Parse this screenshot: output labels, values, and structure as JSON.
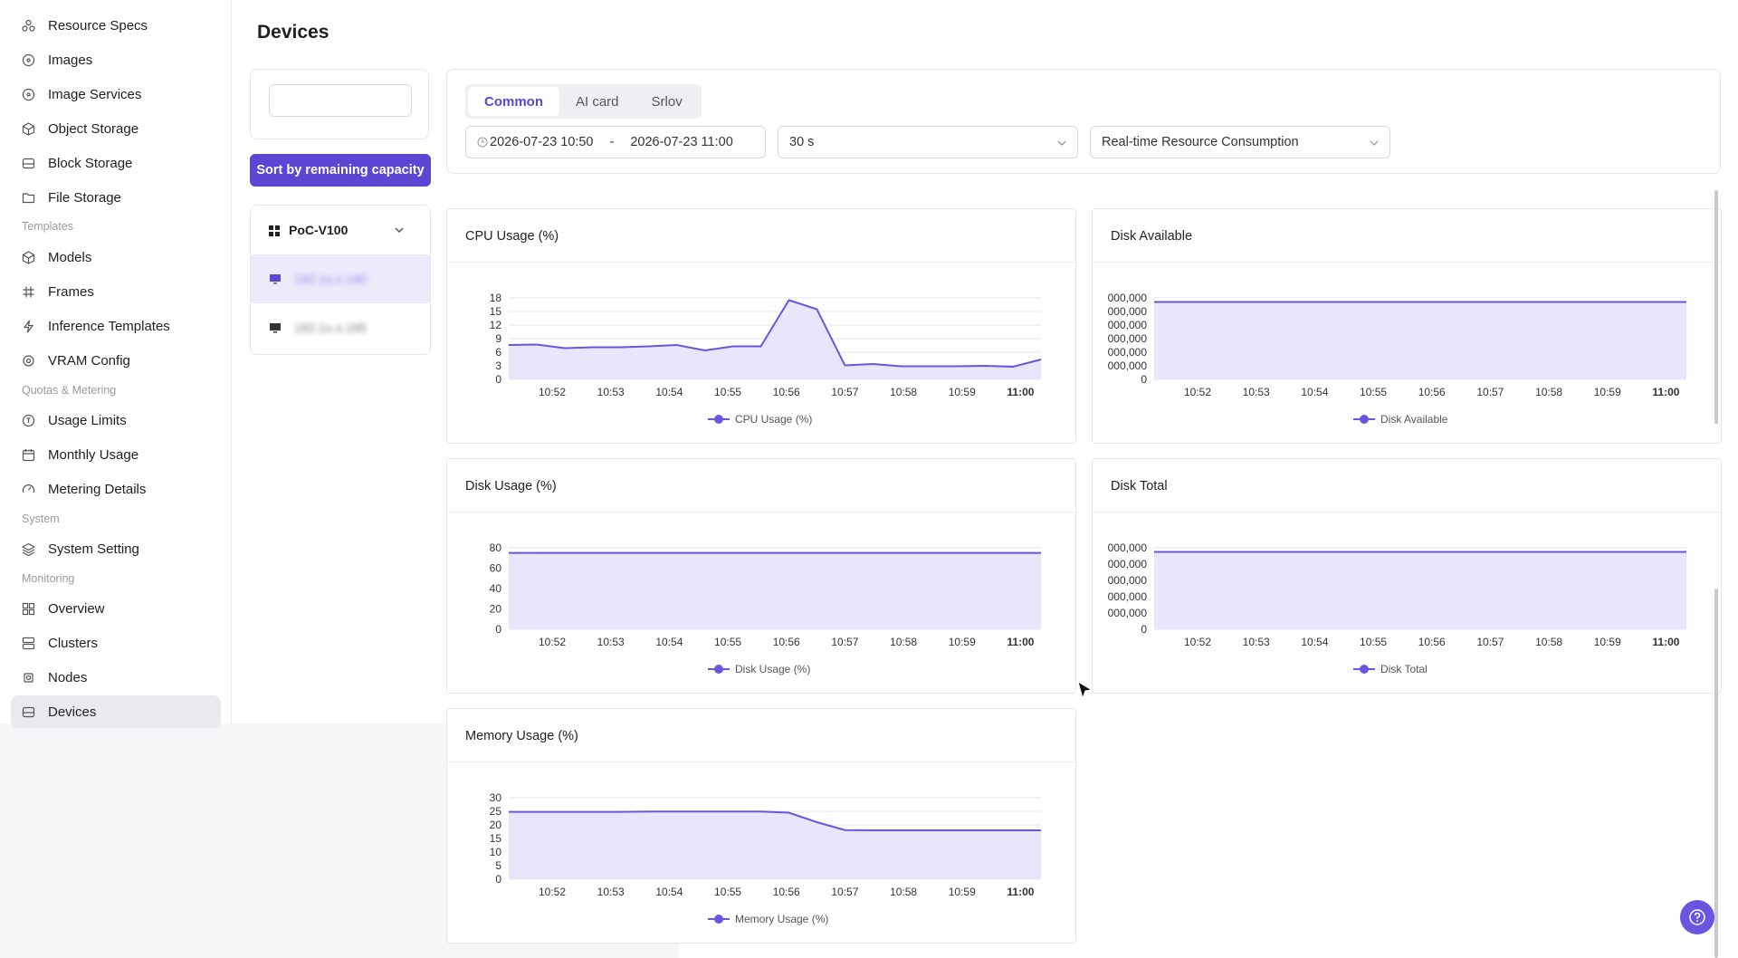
{
  "sidebar": {
    "items": [
      {
        "label": "Resource Specs",
        "icon": "specs-icon"
      },
      {
        "label": "Images",
        "icon": "image-icon"
      },
      {
        "label": "Image Services",
        "icon": "image-service-icon"
      },
      {
        "label": "Object Storage",
        "icon": "cube-icon"
      },
      {
        "label": "Block Storage",
        "icon": "drive-icon"
      },
      {
        "label": "File Storage",
        "icon": "folder-icon"
      },
      {
        "label": "Models",
        "icon": "cube-icon"
      },
      {
        "label": "Frames",
        "icon": "hash-icon"
      },
      {
        "label": "Inference Templates",
        "icon": "bolt-icon"
      },
      {
        "label": "VRAM Config",
        "icon": "gear-icon"
      },
      {
        "label": "Usage Limits",
        "icon": "limit-icon"
      },
      {
        "label": "Monthly Usage",
        "icon": "calendar-icon"
      },
      {
        "label": "Metering Details",
        "icon": "gauge-icon"
      },
      {
        "label": "System Setting",
        "icon": "layers-icon"
      },
      {
        "label": "Overview",
        "icon": "grid-icon"
      },
      {
        "label": "Clusters",
        "icon": "server-icon"
      },
      {
        "label": "Nodes",
        "icon": "chip-icon"
      },
      {
        "label": "Devices",
        "icon": "drive-icon"
      }
    ],
    "groups": [
      "Templates",
      "Quotas & Metering",
      "System",
      "Monitoring"
    ],
    "active": "Devices"
  },
  "page": {
    "title": "Devices",
    "search_value": "",
    "sort_button": "Sort by remaining capacity",
    "cluster": "PoC-V100",
    "devices": [
      "192.1x.x.140",
      "192.1x.x.195"
    ],
    "tabs": [
      "Common",
      "AI card",
      "Srlov"
    ],
    "active_tab": "Common",
    "time_start": "2026-07-23 10:50",
    "time_sep": "-",
    "time_end": "2026-07-23 11:00",
    "interval": "30 s",
    "metric_select": "Real-time Resource Consumption"
  },
  "colors": {
    "accent": "#5d46d4",
    "line": "#6a55e0",
    "area": "#e9e6fb"
  },
  "chart_data": [
    {
      "type": "area",
      "title": "CPU Usage (%)",
      "x": [
        "10:51",
        "10:51:30",
        "10:52",
        "10:52:30",
        "10:53",
        "10:53:30",
        "10:54",
        "10:54:30",
        "10:55",
        "10:55:30",
        "10:56",
        "10:56:30",
        "10:57",
        "10:57:30",
        "10:58",
        "10:58:30",
        "10:59",
        "10:59:30",
        "11:00",
        "11:00:30"
      ],
      "tick_labels": [
        "10:52",
        "10:53",
        "10:54",
        "10:55",
        "10:56",
        "10:57",
        "10:58",
        "10:59",
        "11:00"
      ],
      "series": [
        {
          "name": "CPU Usage (%)",
          "values": [
            7.6,
            7.7,
            6.9,
            7.1,
            7.1,
            7.3,
            7.6,
            6.4,
            7.3,
            7.3,
            17.5,
            15.5,
            3.1,
            3.4,
            2.9,
            2.9,
            2.9,
            3.0,
            2.8,
            4.4
          ]
        }
      ],
      "ylim": [
        0,
        18
      ],
      "yticks": [
        "0",
        "3",
        "6",
        "9",
        "12",
        "15",
        "18"
      ],
      "legend": "bottom"
    },
    {
      "type": "area",
      "title": "Disk Available",
      "tick_labels": [
        "10:52",
        "10:53",
        "10:54",
        "10:55",
        "10:56",
        "10:57",
        "10:58",
        "10:59",
        "11:00"
      ],
      "series": [
        {
          "name": "Disk Available",
          "values": [
            0.95,
            0.95,
            0.95,
            0.95,
            0.95,
            0.95,
            0.95,
            0.95,
            0.95,
            0.95,
            0.95,
            0.95,
            0.95,
            0.95,
            0.95,
            0.95,
            0.95,
            0.95,
            0.95,
            0.95
          ]
        }
      ],
      "ylim": [
        0,
        1
      ],
      "yticks": [
        "0",
        "000,000",
        "000,000",
        "000,000",
        "000,000",
        "000,000",
        "000,000"
      ],
      "legend": "bottom"
    },
    {
      "type": "area",
      "title": "Disk Usage (%)",
      "tick_labels": [
        "10:52",
        "10:53",
        "10:54",
        "10:55",
        "10:56",
        "10:57",
        "10:58",
        "10:59",
        "11:00"
      ],
      "series": [
        {
          "name": "Disk Usage (%)",
          "values": [
            75,
            75,
            75,
            75,
            75,
            75,
            75,
            75,
            75,
            75,
            75,
            75,
            75,
            75,
            75,
            75,
            75,
            75,
            75,
            75
          ]
        }
      ],
      "ylim": [
        0,
        80
      ],
      "yticks": [
        "0",
        "20",
        "40",
        "60",
        "80"
      ],
      "legend": "bottom"
    },
    {
      "type": "area",
      "title": "Disk Total",
      "tick_labels": [
        "10:52",
        "10:53",
        "10:54",
        "10:55",
        "10:56",
        "10:57",
        "10:58",
        "10:59",
        "11:00"
      ],
      "series": [
        {
          "name": "Disk Total",
          "values": [
            0.95,
            0.95,
            0.95,
            0.95,
            0.95,
            0.95,
            0.95,
            0.95,
            0.95,
            0.95,
            0.95,
            0.95,
            0.95,
            0.95,
            0.95,
            0.95,
            0.95,
            0.95,
            0.95,
            0.95
          ]
        }
      ],
      "ylim": [
        0,
        1
      ],
      "yticks": [
        "0",
        "000,000",
        "000,000",
        "000,000",
        "000,000",
        "000,000"
      ],
      "legend": "bottom"
    },
    {
      "type": "area",
      "title": "Memory Usage (%)",
      "tick_labels": [
        "10:52",
        "10:53",
        "10:54",
        "10:55",
        "10:56",
        "10:57",
        "10:58",
        "10:59",
        "11:00"
      ],
      "series": [
        {
          "name": "Memory Usage (%)",
          "values": [
            24.8,
            24.8,
            24.8,
            24.8,
            24.8,
            24.9,
            24.9,
            24.9,
            24.9,
            24.9,
            24.5,
            21.0,
            18.1,
            18.0,
            18.0,
            18.0,
            18.0,
            18.0,
            18.0,
            18.0
          ]
        }
      ],
      "ylim": [
        0,
        30
      ],
      "yticks": [
        "0",
        "5",
        "10",
        "15",
        "20",
        "25",
        "30"
      ],
      "legend": "bottom"
    }
  ]
}
